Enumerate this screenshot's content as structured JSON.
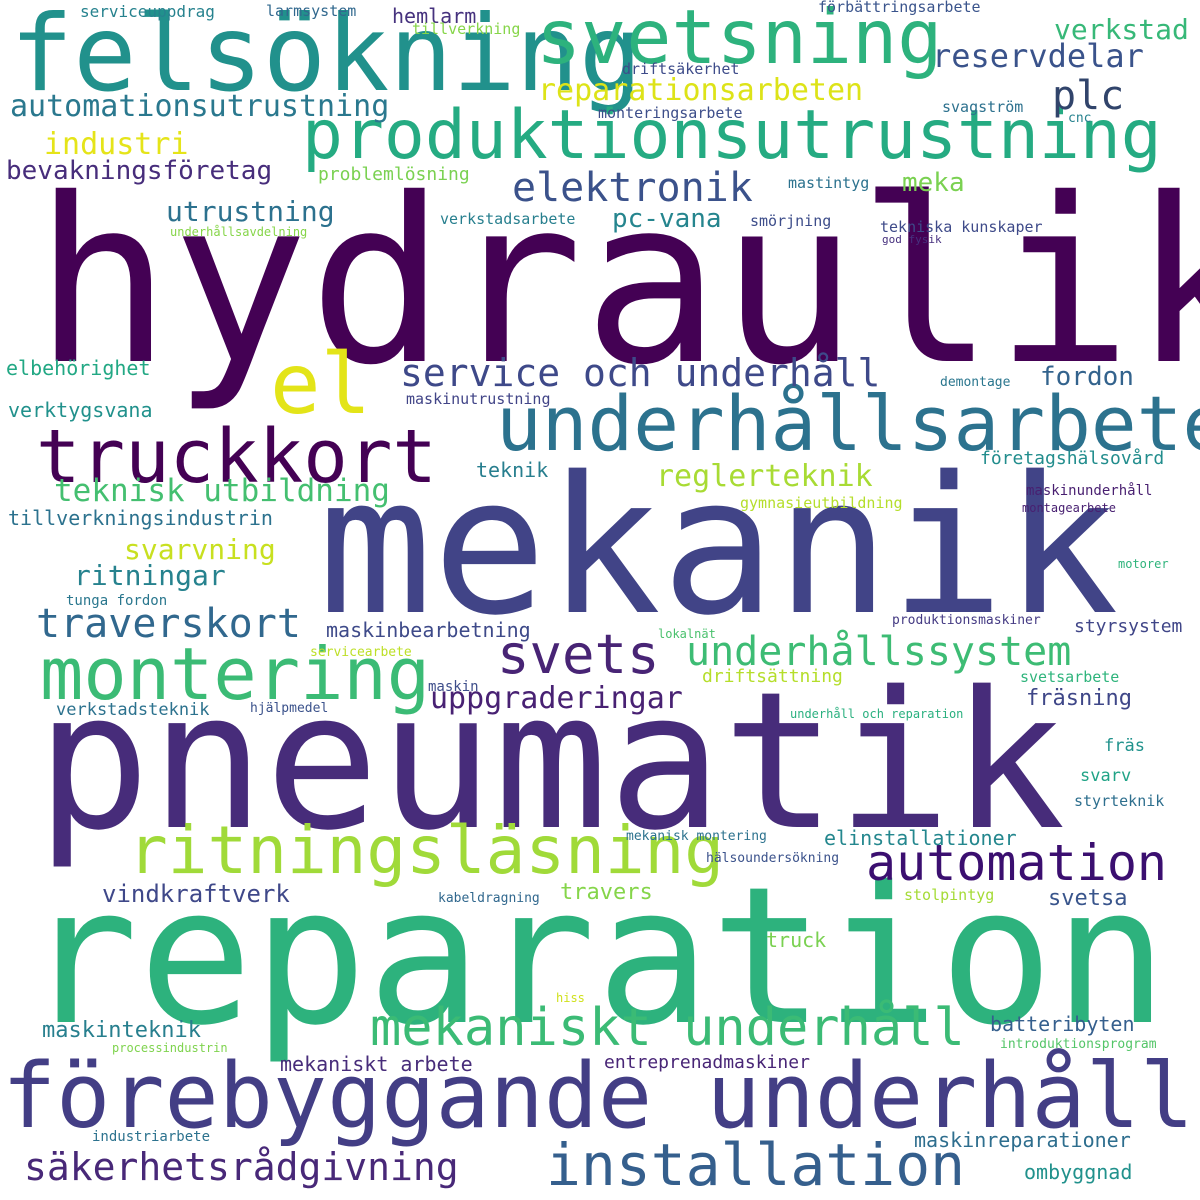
{
  "words": [
    {
      "text": "hydraulik",
      "color": "#440154"
    },
    {
      "text": "mekanik",
      "color": "#414487"
    },
    {
      "text": "pneumatik",
      "color": "#472c7a"
    },
    {
      "text": "reparation",
      "color": "#2db27d"
    },
    {
      "text": "förebyggande underhåll",
      "color": "#433e85"
    },
    {
      "text": "felsökning",
      "color": "#21918c"
    },
    {
      "text": "svetsning",
      "color": "#2db27d"
    },
    {
      "text": "produktionsutrustning",
      "color": "#25ab82"
    },
    {
      "text": "underhållsarbete",
      "color": "#2c728e"
    },
    {
      "text": "truckkort",
      "color": "#440154"
    },
    {
      "text": "el",
      "color": "#e3e418"
    },
    {
      "text": "ritningsläsning",
      "color": "#a0da39"
    },
    {
      "text": "montering",
      "color": "#3bbb75"
    },
    {
      "text": "installation",
      "color": "#355f8d"
    },
    {
      "text": "mekaniskt underhåll",
      "color": "#3bbb75"
    },
    {
      "text": "automation",
      "color": "#3b0f70"
    },
    {
      "text": "svets",
      "color": "#482475"
    },
    {
      "text": "underhållssystem",
      "color": "#3dbc74"
    },
    {
      "text": "service och underhåll",
      "color": "#3e4989"
    },
    {
      "text": "säkerhetsrådgivning",
      "color": "#482878"
    },
    {
      "text": "traverskort",
      "color": "#31688e"
    },
    {
      "text": "elektronik",
      "color": "#3b528b"
    },
    {
      "text": "plc",
      "color": "#31446b"
    },
    {
      "text": "automationsutrustning",
      "color": "#2a788e"
    },
    {
      "text": "reservdelar",
      "color": "#3a538b"
    },
    {
      "text": "reparationsarbeten",
      "color": "#dde318"
    },
    {
      "text": "teknisk utbildning",
      "color": "#44bf70"
    },
    {
      "text": "verkstad",
      "color": "#37b878"
    },
    {
      "text": "uppgraderingar",
      "color": "#482173"
    },
    {
      "text": "industri",
      "color": "#e5e419"
    },
    {
      "text": "bevakningsföretag",
      "color": "#472d7b"
    },
    {
      "text": "utrustning",
      "color": "#2c718e"
    },
    {
      "text": "reglerteknik",
      "color": "#a8db34"
    },
    {
      "text": "fordon",
      "color": "#33638d"
    },
    {
      "text": "ritningar",
      "color": "#26828e"
    },
    {
      "text": "svarvning",
      "color": "#c8e020"
    },
    {
      "text": "meka",
      "color": "#7ad151"
    },
    {
      "text": "pc-vana",
      "color": "#25858e"
    },
    {
      "text": "hemlarm",
      "color": "#46327e"
    },
    {
      "text": "maskinbearbetning",
      "color": "#3e4a89"
    },
    {
      "text": "tillverkningsindustrin",
      "color": "#2c728e"
    },
    {
      "text": "elinstallationer",
      "color": "#24878e"
    },
    {
      "text": "batteribyten",
      "color": "#355f8d"
    },
    {
      "text": "maskinreparationer",
      "color": "#2e6e8e"
    },
    {
      "text": "vindkraftverk",
      "color": "#3f4889"
    },
    {
      "text": "maskinteknik",
      "color": "#277f8e"
    },
    {
      "text": "travers",
      "color": "#85d54a"
    },
    {
      "text": "svetsa",
      "color": "#39558c"
    },
    {
      "text": "fräsning",
      "color": "#3f4788"
    },
    {
      "text": "ombyggnad",
      "color": "#21918c"
    },
    {
      "text": "elbehörighet",
      "color": "#22a884"
    },
    {
      "text": "verktygsvana",
      "color": "#21918c"
    },
    {
      "text": "teknik",
      "color": "#277e8e"
    },
    {
      "text": "företagshälsovård",
      "color": "#228d8d"
    },
    {
      "text": "styrsystem",
      "color": "#404688"
    },
    {
      "text": "mekaniskt arbete",
      "color": "#472c7a"
    },
    {
      "text": "entreprenadmaskiner",
      "color": "#482576"
    },
    {
      "text": "truck",
      "color": "#7ad151"
    },
    {
      "text": "serviceuppdrag",
      "color": "#26828e"
    },
    {
      "text": "larmsystem",
      "color": "#31688e"
    },
    {
      "text": "förbättringsarbete",
      "color": "#3a548c"
    },
    {
      "text": "tillverkning",
      "color": "#86d549"
    },
    {
      "text": "driftsäkerhet",
      "color": "#3e4c8a"
    },
    {
      "text": "svagström",
      "color": "#2d718e"
    },
    {
      "text": "monteringsarbete",
      "color": "#3d4e8a"
    },
    {
      "text": "cnc",
      "color": "#26828e"
    },
    {
      "text": "problemlösning",
      "color": "#7ad151"
    },
    {
      "text": "mastintyg",
      "color": "#2c728e"
    },
    {
      "text": "verkstadsarbete",
      "color": "#277f8e"
    },
    {
      "text": "smörjning",
      "color": "#3d4d8a"
    },
    {
      "text": "tekniska kunskaper",
      "color": "#3e4a89"
    },
    {
      "text": "god fysik",
      "color": "#46307e"
    },
    {
      "text": "underhållsavdelning",
      "color": "#86d549"
    },
    {
      "text": "demontage",
      "color": "#2a768e"
    },
    {
      "text": "maskinutrustning",
      "color": "#414487"
    },
    {
      "text": "gymnasieutbildning",
      "color": "#b5de2b"
    },
    {
      "text": "maskinunderhåll",
      "color": "#481f70"
    },
    {
      "text": "montagearbete",
      "color": "#482071"
    },
    {
      "text": "tunga fordon",
      "color": "#2a778e"
    },
    {
      "text": "motorer",
      "color": "#2fb47c"
    },
    {
      "text": "produktionsmaskiner",
      "color": "#443a83"
    },
    {
      "text": "lokalnät",
      "color": "#4ac16d"
    },
    {
      "text": "servicearbete",
      "color": "#bddf26"
    },
    {
      "text": "driftsättning",
      "color": "#b5de2b"
    },
    {
      "text": "svetsarbete",
      "color": "#2fb47c"
    },
    {
      "text": "maskin",
      "color": "#3d4d8a"
    },
    {
      "text": "verkstadsteknik",
      "color": "#2c728e"
    },
    {
      "text": "hjälpmedel",
      "color": "#3b528b"
    },
    {
      "text": "underhåll och reparation",
      "color": "#2ab07f"
    },
    {
      "text": "fräs",
      "color": "#20928c"
    },
    {
      "text": "svarv",
      "color": "#20a386"
    },
    {
      "text": "styrteknik",
      "color": "#2e6f8e"
    },
    {
      "text": "mekanisk montering",
      "color": "#2c728e"
    },
    {
      "text": "hälsoundersökning",
      "color": "#3b528b"
    },
    {
      "text": "kabeldragning",
      "color": "#31688e"
    },
    {
      "text": "stolpintyg",
      "color": "#a5db36"
    },
    {
      "text": "hiss",
      "color": "#d0e11c"
    },
    {
      "text": "processindustrin",
      "color": "#7fd34e"
    },
    {
      "text": "introduktionsprogram",
      "color": "#54c568"
    },
    {
      "text": "industriarbete",
      "color": "#2c728e"
    }
  ]
}
